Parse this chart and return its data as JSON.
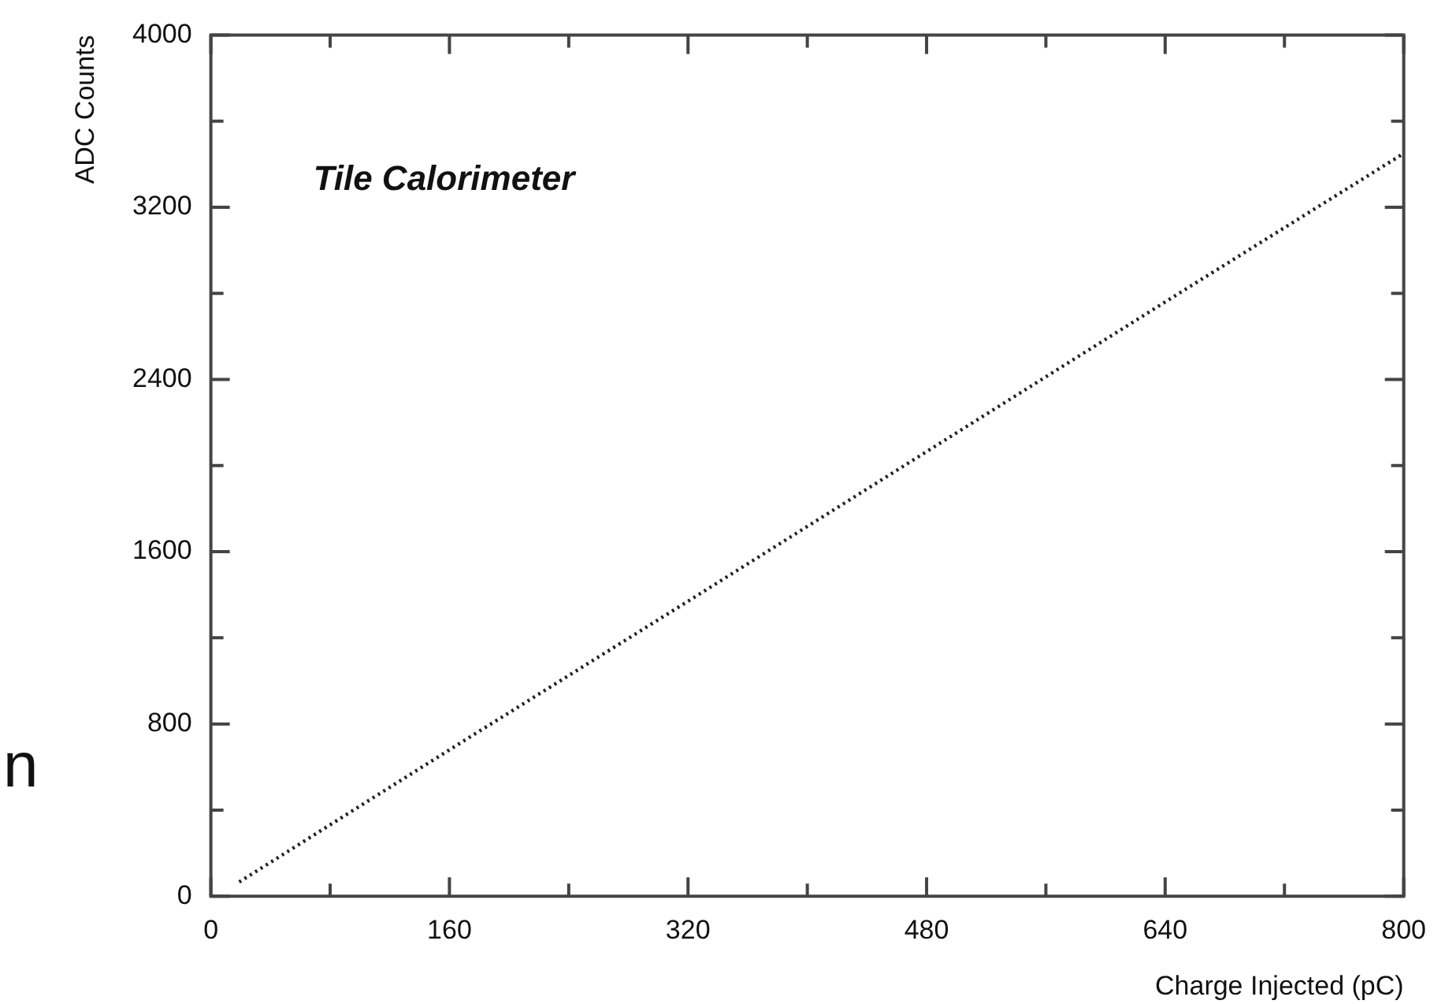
{
  "chart_data": {
    "type": "line",
    "title": "Tile Calorimeter",
    "xlabel": "Charge Injected (pC)",
    "ylabel": "ADC Counts",
    "annotations": [
      "n"
    ],
    "x": [
      19,
      160,
      320,
      480,
      640,
      800
    ],
    "series": [
      {
        "color": "#222222",
        "values": [
          66,
          680,
          1370,
          2065,
          2760,
          3450
        ]
      }
    ],
    "xlim": [
      0,
      800
    ],
    "ylim": [
      0,
      4000
    ],
    "xticks": [
      0,
      {
        "value": 80,
        "label": null
      },
      160,
      {
        "value": 240,
        "label": null
      },
      320,
      {
        "value": 400,
        "label": null
      },
      480,
      {
        "value": 560,
        "label": null
      },
      640,
      {
        "value": 720,
        "label": null
      },
      800
    ],
    "yticks": [
      0,
      {
        "value": 400,
        "label": null
      },
      800,
      {
        "value": 1200,
        "label": null
      },
      1600,
      {
        "value": 2000,
        "label": null
      },
      2400,
      {
        "value": 2800,
        "label": null
      },
      3200,
      {
        "value": 3600,
        "label": null
      },
      4000
    ],
    "grid": false,
    "legend": false,
    "marker": "none",
    "line_style": "dotted"
  }
}
